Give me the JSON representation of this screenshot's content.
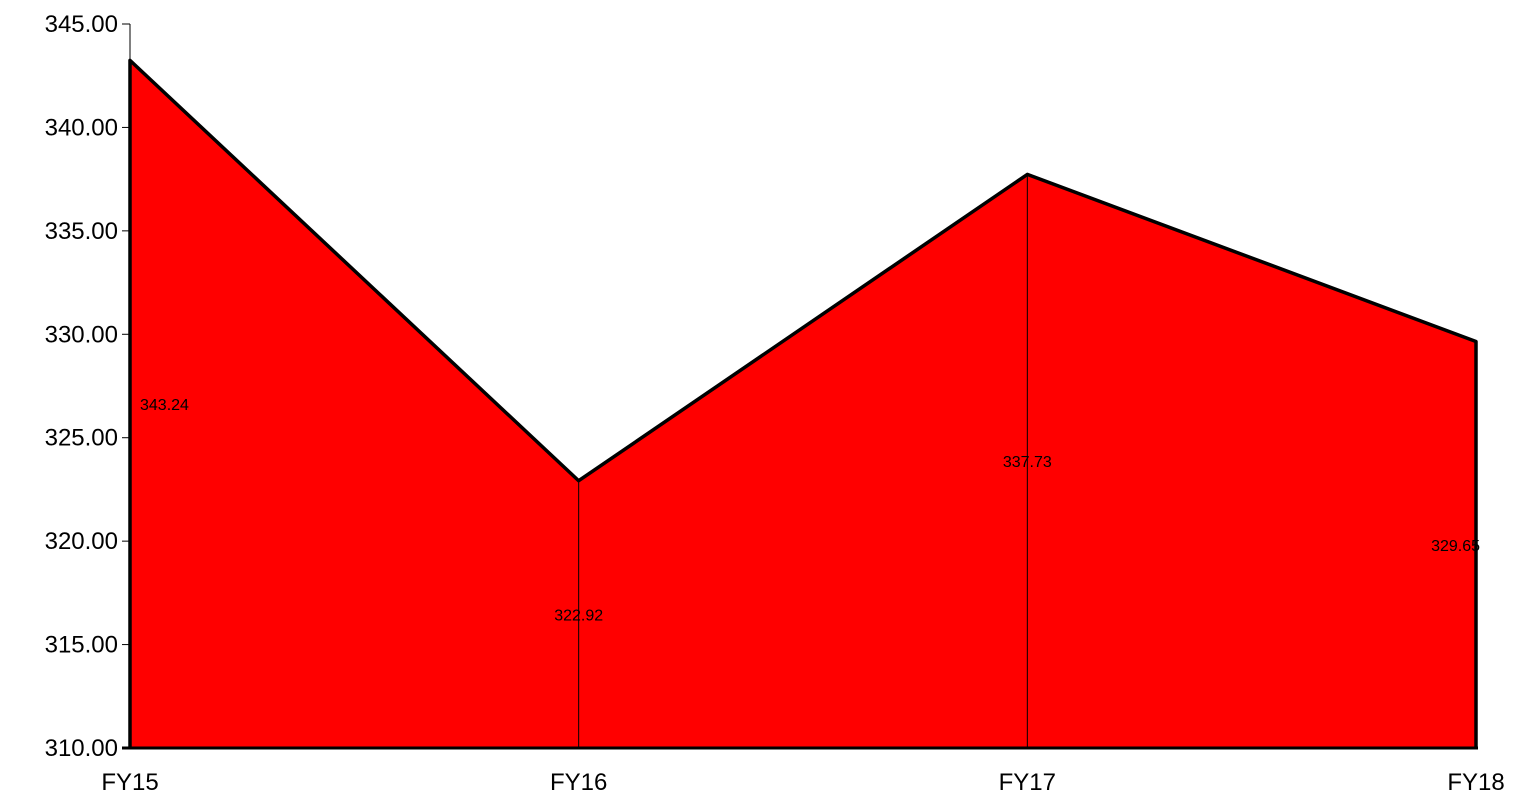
{
  "chart_data": {
    "type": "area",
    "categories": [
      "FY15",
      "FY16",
      "FY17",
      "FY18"
    ],
    "values": [
      343.24,
      322.92,
      337.73,
      329.65
    ],
    "data_labels": [
      "343.24",
      "322.92",
      "337.73",
      "329.65"
    ],
    "y_ticks": [
      "310.00",
      "315.00",
      "320.00",
      "325.00",
      "330.00",
      "335.00",
      "340.00",
      "345.00"
    ],
    "ylim": [
      310,
      345
    ],
    "title": "",
    "xlabel": "",
    "ylabel": "",
    "grid": false,
    "legend": "none",
    "colors": {
      "fill": "#ff0000",
      "outline": "#000000"
    }
  }
}
